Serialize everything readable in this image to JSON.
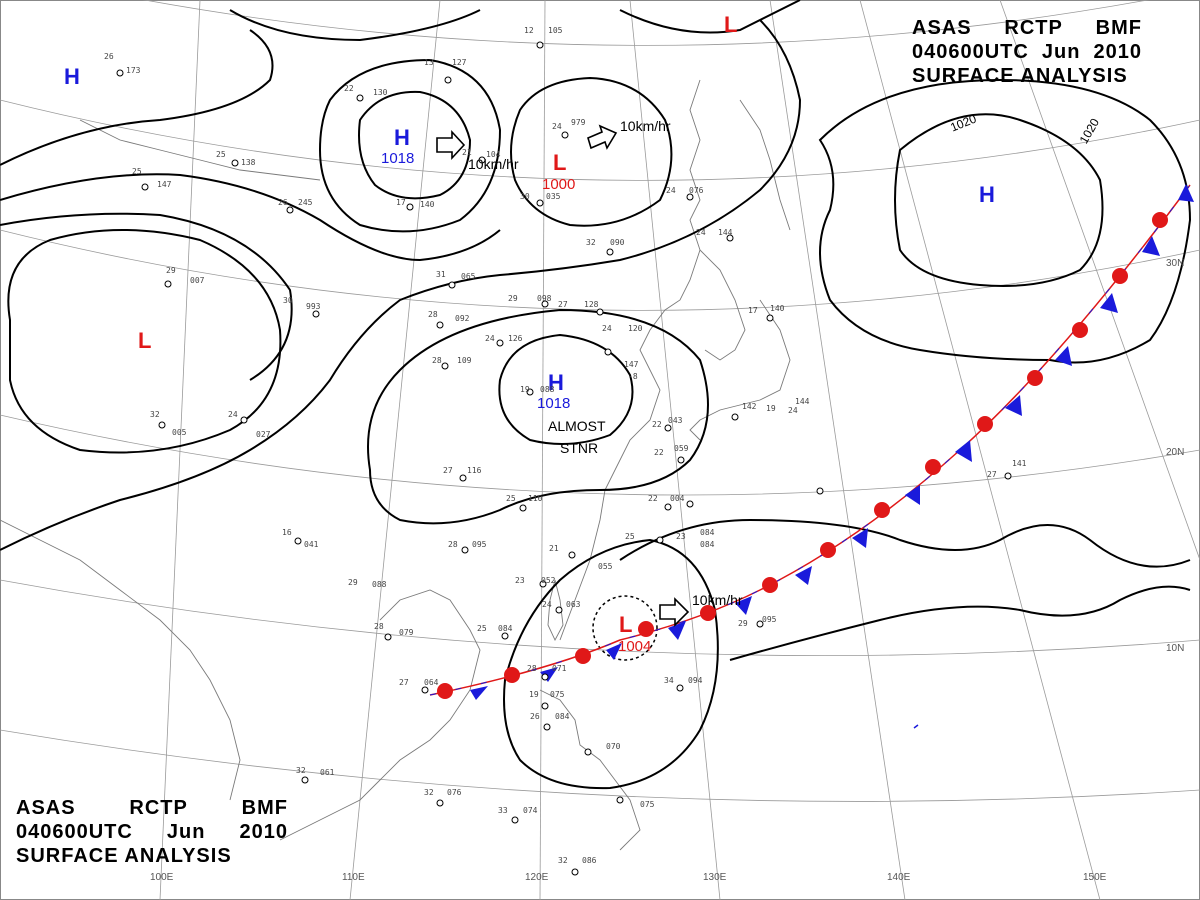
{
  "header": {
    "line1": [
      "ASAS",
      "RCTP",
      "BMF"
    ],
    "line2": [
      "040600UTC",
      "Jun",
      "2010"
    ],
    "line3": "SURFACE ANALYSIS"
  },
  "grid": {
    "longitudes": [
      "100E",
      "110E",
      "120E",
      "130E",
      "140E",
      "150E"
    ],
    "latitudes": [
      "30N",
      "20N",
      "10N"
    ]
  },
  "pressure_systems": [
    {
      "id": "h1",
      "type": "H",
      "value": ""
    },
    {
      "id": "h2",
      "type": "H",
      "value": "1018"
    },
    {
      "id": "h3",
      "type": "H",
      "value": "1018"
    },
    {
      "id": "h4",
      "type": "H",
      "value": ""
    },
    {
      "id": "l1",
      "type": "L",
      "value": ""
    },
    {
      "id": "l2",
      "type": "L",
      "value": "1000"
    },
    {
      "id": "l3",
      "type": "L",
      "value": ""
    },
    {
      "id": "l4",
      "type": "L",
      "value": "1004"
    }
  ],
  "isobar_labels": [
    "1020",
    "1020"
  ],
  "motion_labels": [
    "10km/hr",
    "10km/hr",
    "10km/hr"
  ],
  "annotations": {
    "stationary": [
      "ALMOST",
      "STNR"
    ]
  },
  "stations": [
    {
      "t": "26",
      "p": "173"
    },
    {
      "t": "22",
      "p": "130"
    },
    {
      "t": "13",
      "p": "127"
    },
    {
      "t": "12",
      "p": "105"
    },
    {
      "t": "25",
      "p": "138"
    },
    {
      "t": "21",
      "p": "104"
    },
    {
      "t": "24",
      "p": "979"
    },
    {
      "t": "30",
      "p": "035"
    },
    {
      "t": "25",
      "p": "147"
    },
    {
      "t": "17",
      "p": "140"
    },
    {
      "t": "26",
      "p": "245"
    },
    {
      "t": "32",
      "p": "090"
    },
    {
      "t": "24",
      "p": "076"
    },
    {
      "t": "24",
      "p": "144"
    },
    {
      "t": "29",
      "p": "007"
    },
    {
      "t": "30",
      "p": "993"
    },
    {
      "t": "31",
      "p": "065"
    },
    {
      "t": "29",
      "p": "098"
    },
    {
      "t": "27",
      "p": "128"
    },
    {
      "t": "28",
      "p": "092"
    },
    {
      "t": "24",
      "p": "126"
    },
    {
      "t": "24",
      "p": "120"
    },
    {
      "t": "28",
      "p": "109"
    },
    {
      "t": "19",
      "p": "088"
    },
    {
      "t": "17",
      "p": "140"
    },
    {
      "t": "32",
      "p": "005"
    },
    {
      "t": "24",
      "p": "027"
    },
    {
      "t": "147",
      "p": "-8"
    },
    {
      "t": "142",
      "p": "19"
    },
    {
      "t": "24",
      "p": "144"
    },
    {
      "t": "27",
      "p": "116"
    },
    {
      "t": "25",
      "p": "110"
    },
    {
      "t": "27",
      "p": "141"
    },
    {
      "t": "22",
      "p": "043"
    },
    {
      "t": "22",
      "p": "059"
    },
    {
      "t": "28",
      "p": "095"
    },
    {
      "t": "21",
      "p": "055"
    },
    {
      "t": "25",
      "p": "084"
    },
    {
      "t": "29",
      "p": "088"
    },
    {
      "t": "23",
      "p": "052"
    },
    {
      "t": "24",
      "p": "063"
    },
    {
      "t": "25",
      "p": "084"
    },
    {
      "t": "28",
      "p": "079"
    },
    {
      "t": "27",
      "p": "064"
    },
    {
      "t": "28",
      "p": "071"
    },
    {
      "t": "34",
      "p": "094"
    },
    {
      "t": "29",
      "p": "095"
    },
    {
      "t": "19",
      "p": "075"
    },
    {
      "t": "26",
      "p": "084"
    },
    {
      "t": "070",
      "p": ""
    },
    {
      "t": "32",
      "p": "061"
    },
    {
      "t": "32",
      "p": "076"
    },
    {
      "t": "33",
      "p": "074"
    },
    {
      "t": "075",
      "p": ""
    },
    {
      "t": "32",
      "p": "086"
    },
    {
      "t": "22",
      "p": "004"
    },
    {
      "t": "16",
      "p": "041"
    },
    {
      "t": "23",
      "p": "084"
    }
  ]
}
